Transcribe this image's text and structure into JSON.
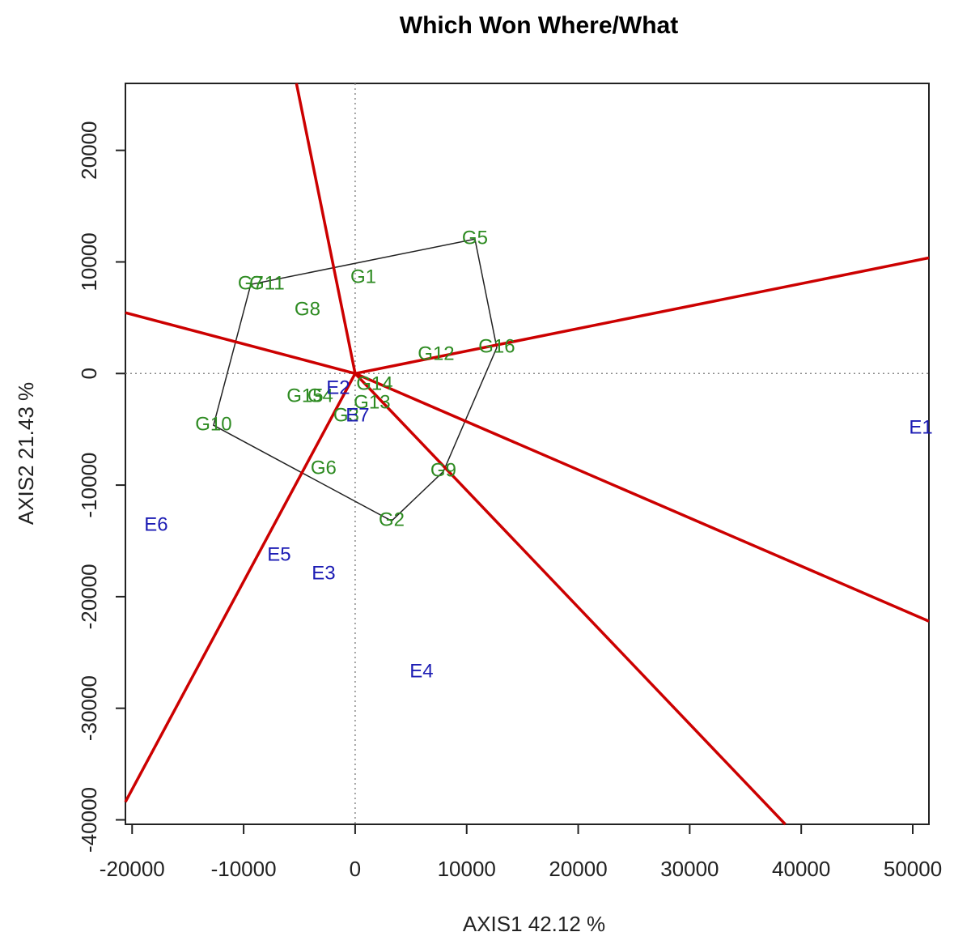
{
  "chart_data": {
    "type": "scatter",
    "title": "Which Won Where/What",
    "x_label": "AXIS1 42.12 %",
    "y_label": "AXIS2 21.43 %",
    "xlim": [
      -20600,
      51450
    ],
    "ylim": [
      -40400,
      26000
    ],
    "xticks": [
      -20000,
      -10000,
      0,
      10000,
      20000,
      30000,
      40000,
      50000
    ],
    "yticks": [
      -40000,
      -30000,
      -20000,
      -10000,
      0,
      10000,
      20000
    ],
    "hull_color": "#222222",
    "ray_color": "#cc0000",
    "series": [
      {
        "color": "#2e8b22",
        "labels": [
          "G1",
          "G2",
          "G3",
          "G4",
          "G5",
          "G6",
          "G7",
          "G8",
          "G9",
          "G10",
          "G11",
          "G12",
          "G13",
          "G14",
          "G15",
          "G16"
        ],
        "x": [
          730,
          3270,
          -800,
          -3120,
          10740,
          -2830,
          -9360,
          -4280,
          7910,
          -12700,
          -7910,
          7260,
          1520,
          1740,
          -4500,
          12700
        ],
        "y": [
          8560,
          -13210,
          -3850,
          -2100,
          12050,
          -8560,
          7980,
          5660,
          -8780,
          -4640,
          7980,
          1670,
          -2690,
          -1020,
          -2100,
          2320
        ]
      },
      {
        "color": "#1c1cb4",
        "labels": [
          "E1",
          "E2",
          "E3",
          "E4",
          "E5",
          "E6",
          "E7"
        ],
        "x": [
          50730,
          -1520,
          -2830,
          5950,
          -6820,
          -17850,
          220
        ],
        "y": [
          -4930,
          -1380,
          -18000,
          -26780,
          -16330,
          -13640,
          -3850
        ]
      }
    ]
  }
}
